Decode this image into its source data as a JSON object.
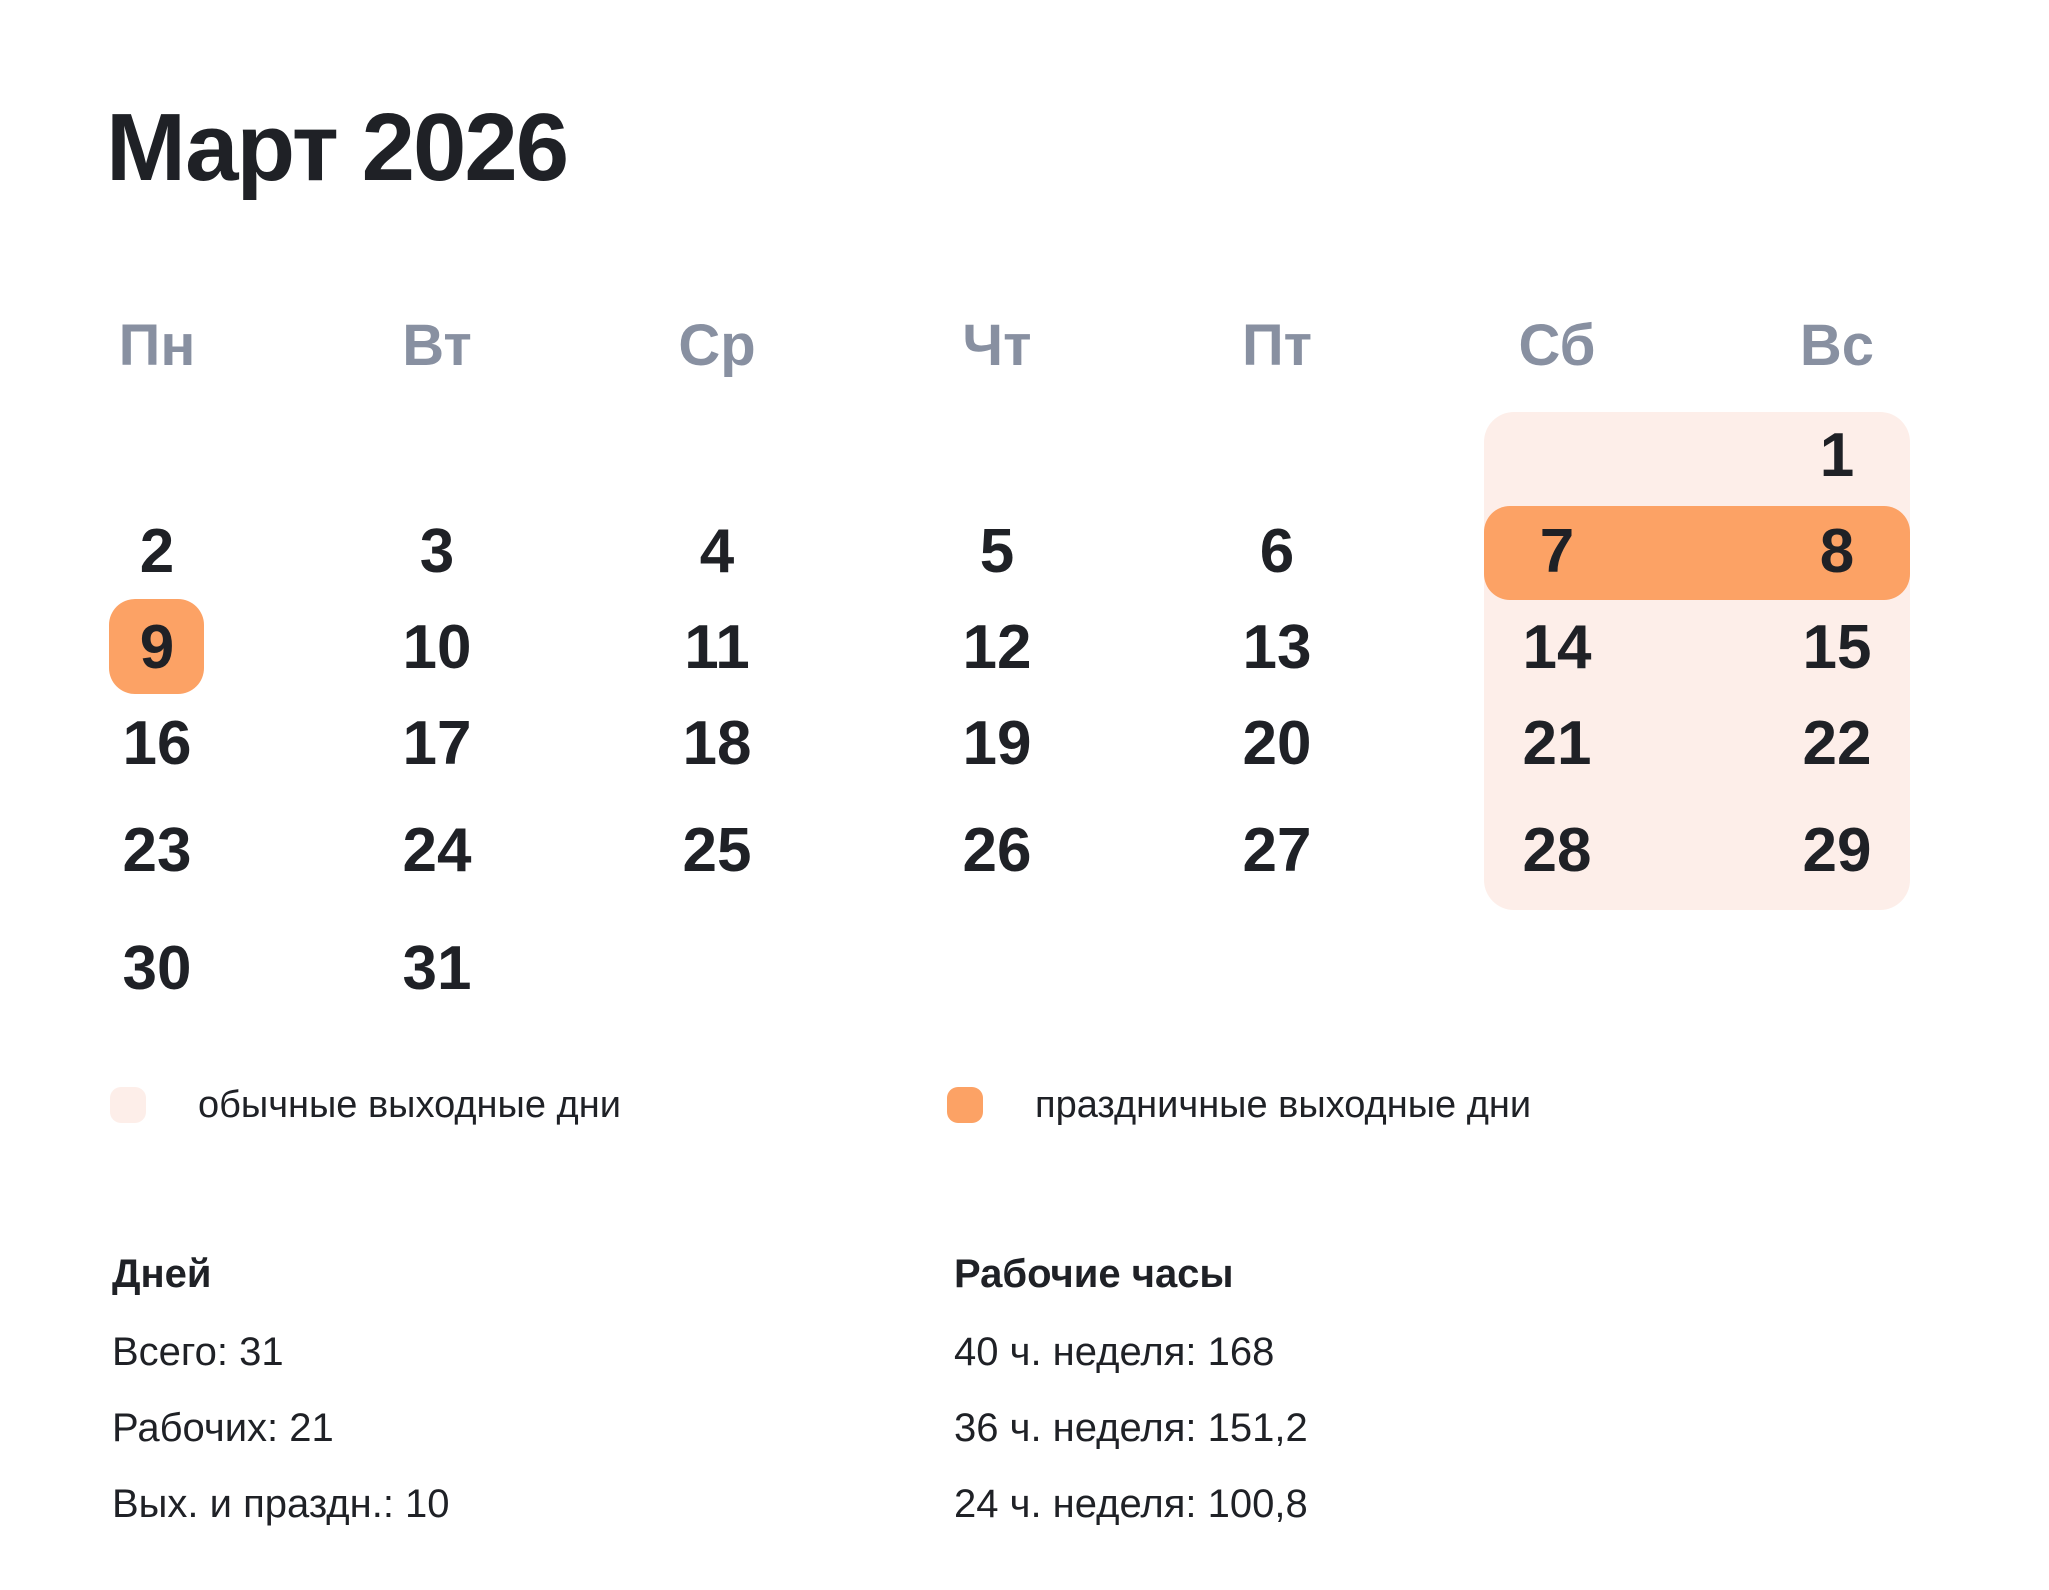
{
  "title": "Март 2026",
  "weekdays": [
    "Пн",
    "Вт",
    "Ср",
    "Чт",
    "Пт",
    "Сб",
    "Вс"
  ],
  "calendar": {
    "weeks": [
      [
        "",
        "",
        "",
        "",
        "",
        "",
        "1"
      ],
      [
        "2",
        "3",
        "4",
        "5",
        "6",
        "7",
        "8"
      ],
      [
        "9",
        "10",
        "11",
        "12",
        "13",
        "14",
        "15"
      ],
      [
        "16",
        "17",
        "18",
        "19",
        "20",
        "21",
        "22"
      ],
      [
        "23",
        "24",
        "25",
        "26",
        "27",
        "28",
        "29"
      ],
      [
        "30",
        "31",
        "",
        "",
        "",
        "",
        ""
      ]
    ],
    "regular_weekend_days": [
      "1",
      "14",
      "15",
      "21",
      "22",
      "28",
      "29"
    ],
    "holiday_weekend_days": [
      "7",
      "8",
      "9"
    ]
  },
  "legend": {
    "regular_label": "обычные выходные дни",
    "holiday_label": "праздничные выходные дни"
  },
  "stats": {
    "days": {
      "heading": "Дней",
      "total": "Всего: 31",
      "working": "Рабочих: 21",
      "off": "Вых. и праздн.: 10"
    },
    "hours": {
      "heading": "Рабочие часы",
      "week40": "40 ч. неделя: 168",
      "week36": "36 ч. неделя: 151,2",
      "week24": "24 ч. неделя: 100,8"
    }
  },
  "colors": {
    "weekend_bg": "#FDEEE9",
    "holiday_bg": "#FCA265",
    "weekday_header": "#8890A1",
    "text_dark": "#1F2126"
  }
}
